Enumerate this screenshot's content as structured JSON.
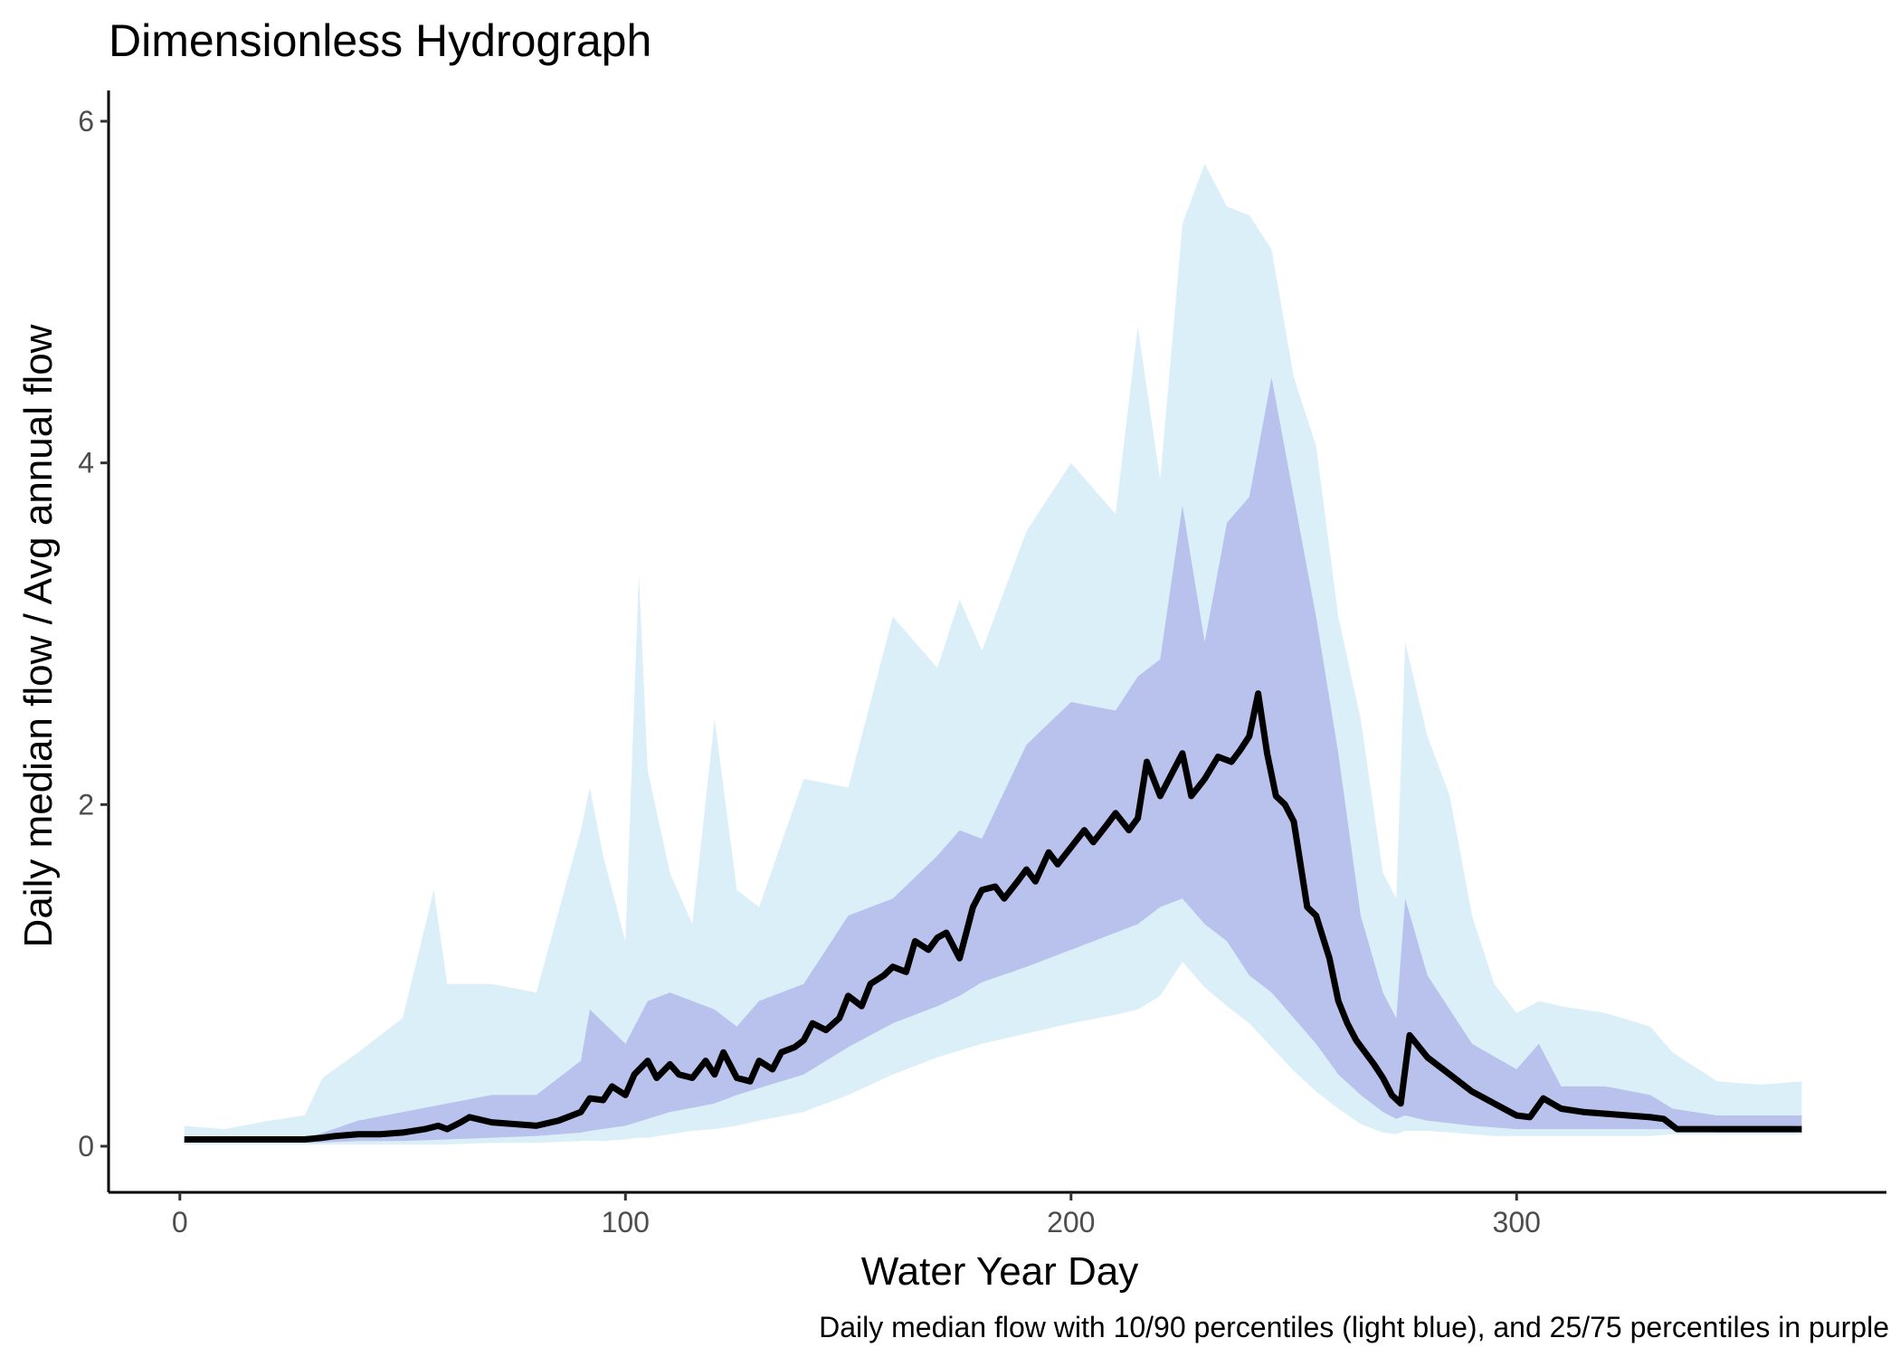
{
  "chart_data": {
    "type": "area",
    "title": "Dimensionless Hydrograph",
    "xlabel": "Water Year Day",
    "ylabel": "Daily median flow / Avg annual flow",
    "caption": "Daily median flow with 10/90 percentiles (light blue), and 25/75 percentiles in purple",
    "xlim": [
      -16,
      383
    ],
    "ylim": [
      -0.27,
      6.18
    ],
    "xticks": [
      0,
      100,
      200,
      300
    ],
    "yticks": [
      0,
      2,
      4,
      6
    ],
    "grid": false,
    "legend": "none",
    "colors": {
      "band_10_90": "#dbeff8",
      "band_25_75": "#b8c2ec",
      "median": "#000000",
      "axis": "#000000",
      "tick_label": "#4d4d4d"
    },
    "series": [
      {
        "role": "band_10_90",
        "x": [
          1,
          10,
          20,
          28,
          32,
          40,
          50,
          57,
          60,
          70,
          80,
          90,
          92,
          95,
          100,
          103,
          105,
          110,
          115,
          120,
          125,
          130,
          140,
          150,
          160,
          170,
          175,
          180,
          190,
          200,
          210,
          215,
          220,
          225,
          230,
          235,
          240,
          245,
          250,
          255,
          260,
          265,
          270,
          273,
          275,
          280,
          285,
          290,
          295,
          300,
          305,
          310,
          320,
          330,
          335,
          345,
          355,
          364
        ],
        "lower": [
          0.01,
          0.01,
          0.01,
          0.01,
          0.01,
          0.01,
          0.01,
          0.01,
          0.01,
          0.02,
          0.02,
          0.03,
          0.03,
          0.03,
          0.04,
          0.05,
          0.05,
          0.07,
          0.09,
          0.1,
          0.12,
          0.15,
          0.2,
          0.3,
          0.42,
          0.52,
          0.56,
          0.6,
          0.66,
          0.72,
          0.77,
          0.8,
          0.88,
          1.08,
          0.93,
          0.82,
          0.72,
          0.58,
          0.44,
          0.32,
          0.22,
          0.13,
          0.08,
          0.07,
          0.09,
          0.09,
          0.08,
          0.07,
          0.06,
          0.06,
          0.06,
          0.06,
          0.06,
          0.06,
          0.07,
          0.07,
          0.07,
          0.07
        ],
        "upper": [
          0.12,
          0.1,
          0.15,
          0.18,
          0.4,
          0.55,
          0.75,
          1.5,
          0.95,
          0.95,
          0.9,
          1.85,
          2.1,
          1.7,
          1.2,
          3.35,
          2.2,
          1.6,
          1.3,
          2.5,
          1.5,
          1.4,
          2.15,
          2.1,
          3.1,
          2.8,
          3.2,
          2.9,
          3.6,
          4.0,
          3.7,
          4.8,
          3.9,
          5.4,
          5.75,
          5.5,
          5.45,
          5.25,
          4.5,
          4.1,
          3.1,
          2.5,
          1.6,
          1.45,
          2.95,
          2.4,
          2.05,
          1.35,
          0.95,
          0.78,
          0.85,
          0.82,
          0.78,
          0.7,
          0.55,
          0.38,
          0.36,
          0.38
        ]
      },
      {
        "role": "band_25_75",
        "x": [
          1,
          20,
          30,
          40,
          50,
          60,
          70,
          80,
          90,
          92,
          100,
          105,
          110,
          120,
          125,
          130,
          140,
          150,
          160,
          170,
          175,
          180,
          190,
          200,
          210,
          215,
          220,
          225,
          230,
          235,
          240,
          245,
          250,
          255,
          260,
          265,
          270,
          273,
          275,
          280,
          290,
          300,
          305,
          310,
          320,
          330,
          335,
          345,
          355,
          364
        ],
        "lower": [
          0.02,
          0.02,
          0.02,
          0.03,
          0.03,
          0.04,
          0.05,
          0.06,
          0.08,
          0.09,
          0.12,
          0.16,
          0.2,
          0.25,
          0.3,
          0.34,
          0.42,
          0.58,
          0.72,
          0.82,
          0.88,
          0.96,
          1.05,
          1.15,
          1.25,
          1.3,
          1.4,
          1.45,
          1.3,
          1.2,
          1.0,
          0.9,
          0.75,
          0.6,
          0.42,
          0.3,
          0.2,
          0.16,
          0.18,
          0.15,
          0.12,
          0.1,
          0.1,
          0.1,
          0.1,
          0.1,
          0.1,
          0.08,
          0.08,
          0.08
        ],
        "upper": [
          0.04,
          0.04,
          0.06,
          0.15,
          0.2,
          0.25,
          0.3,
          0.3,
          0.5,
          0.8,
          0.6,
          0.85,
          0.9,
          0.8,
          0.7,
          0.85,
          0.95,
          1.35,
          1.45,
          1.7,
          1.85,
          1.8,
          2.35,
          2.6,
          2.55,
          2.75,
          2.85,
          3.75,
          2.95,
          3.65,
          3.8,
          4.5,
          3.8,
          3.1,
          2.3,
          1.35,
          0.9,
          0.75,
          1.45,
          1.0,
          0.6,
          0.45,
          0.6,
          0.35,
          0.35,
          0.3,
          0.22,
          0.18,
          0.18,
          0.18
        ]
      },
      {
        "role": "median",
        "x": [
          1,
          10,
          20,
          28,
          32,
          35,
          40,
          45,
          50,
          55,
          58,
          60,
          63,
          65,
          70,
          75,
          80,
          85,
          90,
          92,
          95,
          97,
          100,
          102,
          105,
          107,
          110,
          112,
          115,
          118,
          120,
          122,
          125,
          128,
          130,
          133,
          135,
          138,
          140,
          142,
          145,
          148,
          150,
          153,
          155,
          158,
          160,
          163,
          165,
          168,
          170,
          172,
          175,
          178,
          180,
          183,
          185,
          188,
          190,
          192,
          195,
          197,
          200,
          203,
          205,
          208,
          210,
          213,
          215,
          217,
          220,
          223,
          225,
          227,
          230,
          233,
          236,
          238,
          240,
          242,
          244,
          246,
          248,
          250,
          253,
          255,
          258,
          260,
          262,
          264,
          266,
          268,
          270,
          272,
          274,
          276,
          280,
          285,
          290,
          295,
          300,
          303,
          306,
          310,
          315,
          320,
          325,
          330,
          333,
          336,
          340,
          350,
          364
        ],
        "y": [
          0.04,
          0.04,
          0.04,
          0.04,
          0.05,
          0.06,
          0.07,
          0.07,
          0.08,
          0.1,
          0.12,
          0.1,
          0.14,
          0.17,
          0.14,
          0.13,
          0.12,
          0.15,
          0.2,
          0.28,
          0.27,
          0.35,
          0.3,
          0.42,
          0.5,
          0.4,
          0.48,
          0.42,
          0.4,
          0.5,
          0.42,
          0.55,
          0.4,
          0.38,
          0.5,
          0.45,
          0.55,
          0.58,
          0.62,
          0.72,
          0.68,
          0.75,
          0.88,
          0.82,
          0.95,
          1.0,
          1.05,
          1.02,
          1.2,
          1.15,
          1.22,
          1.25,
          1.1,
          1.4,
          1.5,
          1.52,
          1.45,
          1.55,
          1.62,
          1.55,
          1.72,
          1.65,
          1.75,
          1.85,
          1.78,
          1.88,
          1.95,
          1.85,
          1.92,
          2.25,
          2.05,
          2.2,
          2.3,
          2.05,
          2.15,
          2.28,
          2.25,
          2.32,
          2.4,
          2.65,
          2.3,
          2.05,
          2.0,
          1.9,
          1.4,
          1.35,
          1.1,
          0.85,
          0.72,
          0.62,
          0.55,
          0.48,
          0.4,
          0.3,
          0.25,
          0.65,
          0.52,
          0.42,
          0.32,
          0.25,
          0.18,
          0.17,
          0.28,
          0.22,
          0.2,
          0.19,
          0.18,
          0.17,
          0.16,
          0.1,
          0.1,
          0.1,
          0.1
        ]
      }
    ]
  }
}
